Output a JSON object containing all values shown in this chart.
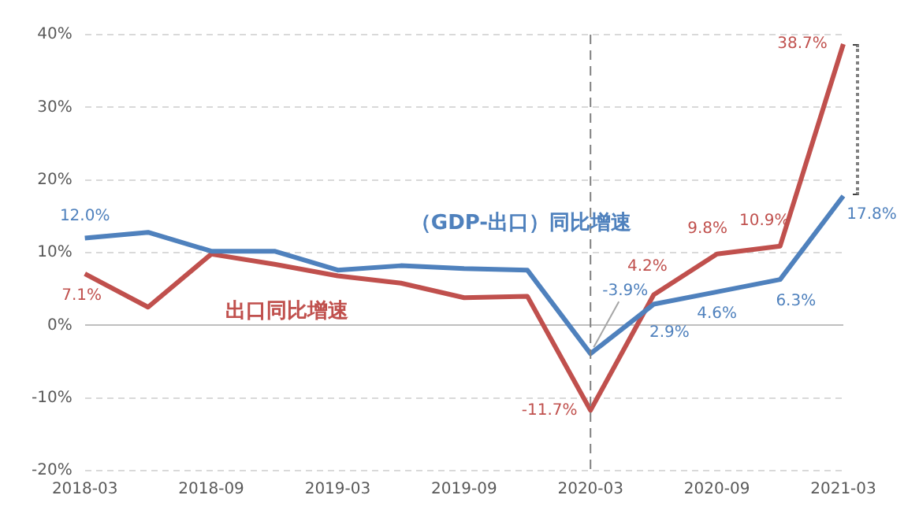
{
  "chart_data": {
    "type": "line",
    "categories": [
      "2018-03",
      null,
      "2018-09",
      null,
      "2019-03",
      null,
      "2019-09",
      null,
      "2020-03",
      null,
      "2020-09",
      null,
      "2021-03"
    ],
    "series": [
      {
        "name": "（GDP-出口）同比增速",
        "color": "#4f81bd",
        "values": [
          12.0,
          12.8,
          10.2,
          10.2,
          7.6,
          8.2,
          7.8,
          7.6,
          -3.9,
          2.9,
          4.6,
          6.3,
          17.8
        ],
        "value_labels": [
          "12.0%",
          null,
          null,
          null,
          null,
          null,
          null,
          null,
          "-3.9%",
          "2.9%",
          "4.6%",
          "6.3%",
          "17.8%"
        ]
      },
      {
        "name": "出口同比增速",
        "color": "#c0504d",
        "values": [
          7.1,
          2.5,
          9.8,
          8.4,
          6.8,
          5.8,
          3.8,
          4.0,
          -11.7,
          4.2,
          9.8,
          10.9,
          38.7
        ],
        "value_labels": [
          "7.1%",
          null,
          null,
          null,
          null,
          null,
          null,
          null,
          "-11.7%",
          "4.2%",
          "9.8%",
          "10.9%",
          "38.7%"
        ]
      }
    ],
    "ylim": [
      -20,
      40
    ],
    "yticks": [
      {
        "value": -20,
        "label": "-20%"
      },
      {
        "value": -10,
        "label": "-10%"
      },
      {
        "value": 0,
        "label": "0%"
      },
      {
        "value": 10,
        "label": "10%"
      },
      {
        "value": 20,
        "label": "20%"
      },
      {
        "value": 30,
        "label": "30%"
      },
      {
        "value": 40,
        "label": "40%"
      }
    ],
    "grid": "y",
    "legend": false,
    "marker": "none",
    "line_style": "solid",
    "ref_lines": [
      {
        "axis": "x",
        "value": "2020-03",
        "color": "#808080",
        "line_style": "dashed"
      }
    ]
  }
}
